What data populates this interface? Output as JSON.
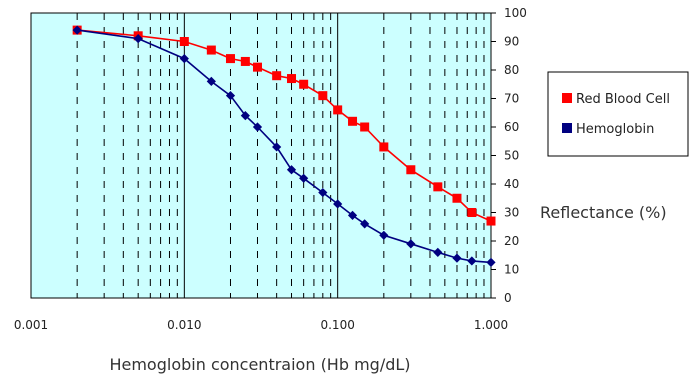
{
  "chart_data": {
    "type": "line",
    "x_scale": "log",
    "xlim": [
      0.001,
      1.0
    ],
    "ylim": [
      0,
      100
    ],
    "y_ticks": [
      0,
      10,
      20,
      30,
      40,
      50,
      60,
      70,
      80,
      90,
      100
    ],
    "x_ticks": [
      "0.001",
      "0.010",
      "0.100",
      "1.000"
    ],
    "x_tick_values": [
      0.001,
      0.01,
      0.1,
      1.0
    ],
    "xlabel": "Hemoglobin concentraion (Hb mg/dL)",
    "ylabel": "Reflectance (%)",
    "y_axis_side": "right",
    "plot_background": "#ccffff",
    "grid": {
      "major_vertical": "solid",
      "minor_vertical": "dashed"
    },
    "legend_position": "right",
    "series": [
      {
        "name": "Red Blood Cell",
        "color": "#ff0000",
        "marker": "square",
        "points": [
          [
            0.002,
            94
          ],
          [
            0.005,
            92
          ],
          [
            0.01,
            90
          ],
          [
            0.015,
            87
          ],
          [
            0.02,
            84
          ],
          [
            0.025,
            83
          ],
          [
            0.03,
            81
          ],
          [
            0.04,
            78
          ],
          [
            0.05,
            77
          ],
          [
            0.06,
            75
          ],
          [
            0.08,
            71
          ],
          [
            0.1,
            66
          ],
          [
            0.125,
            62
          ],
          [
            0.15,
            60
          ],
          [
            0.2,
            53
          ],
          [
            0.3,
            45
          ],
          [
            0.45,
            39
          ],
          [
            0.6,
            35
          ],
          [
            0.75,
            30
          ],
          [
            1.0,
            27
          ]
        ]
      },
      {
        "name": "Hemoglobin",
        "color": "#000080",
        "marker": "diamond",
        "points": [
          [
            0.002,
            94
          ],
          [
            0.005,
            91
          ],
          [
            0.01,
            84
          ],
          [
            0.015,
            76
          ],
          [
            0.02,
            71
          ],
          [
            0.025,
            64
          ],
          [
            0.03,
            60
          ],
          [
            0.04,
            53
          ],
          [
            0.05,
            45
          ],
          [
            0.06,
            42
          ],
          [
            0.08,
            37
          ],
          [
            0.1,
            33
          ],
          [
            0.125,
            29
          ],
          [
            0.15,
            26
          ],
          [
            0.2,
            22
          ],
          [
            0.3,
            19
          ],
          [
            0.45,
            16
          ],
          [
            0.6,
            14
          ],
          [
            0.75,
            13
          ],
          [
            1.0,
            12.5
          ]
        ]
      }
    ]
  }
}
